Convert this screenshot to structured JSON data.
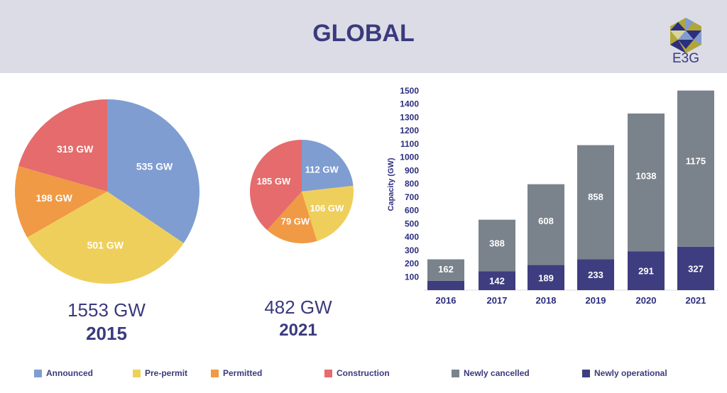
{
  "header": {
    "title": "GLOBAL",
    "logo": "E3G"
  },
  "colors": {
    "announced": "#7f9dd1",
    "pre_permit": "#efcf5b",
    "permitted": "#f09a45",
    "construction": "#e56b6c",
    "cancelled": "#7a838c",
    "operational": "#3e3d80"
  },
  "chart_data": [
    {
      "type": "pie",
      "title": "2015",
      "total_label": "1553 GW",
      "slices": [
        {
          "name": "Announced",
          "value": 535,
          "label": "535 GW"
        },
        {
          "name": "Pre-permit",
          "value": 501,
          "label": "501 GW"
        },
        {
          "name": "Permitted",
          "value": 198,
          "label": "198 GW"
        },
        {
          "name": "Construction",
          "value": 319,
          "label": "319 GW"
        }
      ]
    },
    {
      "type": "pie",
      "title": "2021",
      "total_label": "482 GW",
      "slices": [
        {
          "name": "Announced",
          "value": 112,
          "label": "112 GW"
        },
        {
          "name": "Pre-permit",
          "value": 106,
          "label": "106 GW"
        },
        {
          "name": "Permitted",
          "value": 79,
          "label": "79 GW"
        },
        {
          "name": "Construction",
          "value": 185,
          "label": "185 GW"
        }
      ]
    },
    {
      "type": "bar",
      "stacked": true,
      "ylabel": "Capacity (GW)",
      "ylim": [
        0,
        1500
      ],
      "yticks": [
        100,
        200,
        300,
        400,
        500,
        600,
        700,
        800,
        900,
        1000,
        1100,
        1200,
        1300,
        1400,
        1500
      ],
      "categories": [
        "2016",
        "2017",
        "2018",
        "2019",
        "2020",
        "2021"
      ],
      "series": [
        {
          "name": "Newly operational",
          "values": [
            70,
            142,
            189,
            233,
            291,
            327
          ],
          "labels": [
            "",
            "142",
            "189",
            "233",
            "291",
            "327"
          ]
        },
        {
          "name": "Newly cancelled",
          "values": [
            162,
            388,
            608,
            858,
            1038,
            1175
          ],
          "labels": [
            "162",
            "388",
            "608",
            "858",
            "1038",
            "1175"
          ]
        }
      ]
    }
  ],
  "legend": [
    {
      "label": "Announced",
      "key": "announced"
    },
    {
      "label": "Pre-permit",
      "key": "pre_permit"
    },
    {
      "label": "Permitted",
      "key": "permitted"
    },
    {
      "label": "Construction",
      "key": "construction"
    },
    {
      "label": "Newly cancelled",
      "key": "cancelled"
    },
    {
      "label": "Newly operational",
      "key": "operational"
    }
  ]
}
